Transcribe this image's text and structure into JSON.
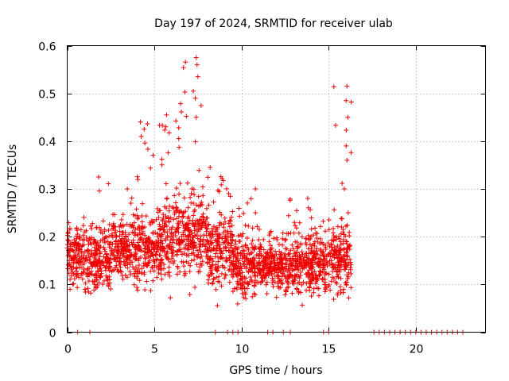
{
  "chart_data": {
    "type": "scatter",
    "title": "Day 197 of 2024, SRMTID for receiver ulab",
    "xlabel": "GPS time / hours",
    "ylabel": "SRMTID / TECUs",
    "xlim": [
      0,
      24
    ],
    "ylim": [
      0,
      0.6
    ],
    "xticks": [
      0,
      5,
      10,
      15,
      20
    ],
    "yticks": [
      0,
      0.1,
      0.2,
      0.3,
      0.4,
      0.5,
      0.6
    ],
    "xtick_labels": [
      "0",
      "5",
      "10",
      "15",
      "20"
    ],
    "ytick_labels": [
      "0",
      "0.1",
      "0.2",
      "0.3",
      "0.4",
      "0.5",
      "0.6"
    ],
    "grid": true,
    "marker": "+",
    "color": "#ee0000",
    "series": [
      {
        "name": "SRMTID",
        "segments": [
          {
            "x_start": 0.0,
            "x_end": 1.0,
            "baseline": 0.16,
            "spread": 0.05,
            "max": 0.25
          },
          {
            "x_start": 1.0,
            "x_end": 2.5,
            "baseline": 0.15,
            "spread": 0.05,
            "max": 0.32
          },
          {
            "x_start": 2.5,
            "x_end": 4.0,
            "baseline": 0.17,
            "spread": 0.05,
            "max": 0.3
          },
          {
            "x_start": 4.0,
            "x_end": 5.0,
            "baseline": 0.18,
            "spread": 0.06,
            "max": 0.44
          },
          {
            "x_start": 5.0,
            "x_end": 6.5,
            "baseline": 0.2,
            "spread": 0.07,
            "max": 0.45
          },
          {
            "x_start": 6.5,
            "x_end": 8.0,
            "baseline": 0.2,
            "spread": 0.07,
            "max": 0.57
          },
          {
            "x_start": 8.0,
            "x_end": 9.5,
            "baseline": 0.17,
            "spread": 0.06,
            "max": 0.34
          },
          {
            "x_start": 9.5,
            "x_end": 11.0,
            "baseline": 0.14,
            "spread": 0.05,
            "max": 0.3
          },
          {
            "x_start": 11.0,
            "x_end": 12.5,
            "baseline": 0.14,
            "spread": 0.04,
            "max": 0.22
          },
          {
            "x_start": 12.5,
            "x_end": 14.0,
            "baseline": 0.14,
            "spread": 0.05,
            "max": 0.28
          },
          {
            "x_start": 14.0,
            "x_end": 15.0,
            "baseline": 0.14,
            "spread": 0.05,
            "max": 0.25
          },
          {
            "x_start": 15.0,
            "x_end": 16.3,
            "baseline": 0.16,
            "spread": 0.06,
            "max": 0.52
          }
        ],
        "spikes": [
          {
            "x": 4.2,
            "y": 0.44
          },
          {
            "x": 4.25,
            "y": 0.41
          },
          {
            "x": 5.7,
            "y": 0.455
          },
          {
            "x": 5.65,
            "y": 0.43
          },
          {
            "x": 7.4,
            "y": 0.575
          },
          {
            "x": 7.45,
            "y": 0.56
          },
          {
            "x": 7.5,
            "y": 0.535
          },
          {
            "x": 7.35,
            "y": 0.49
          },
          {
            "x": 7.4,
            "y": 0.45
          },
          {
            "x": 16.05,
            "y": 0.515
          },
          {
            "x": 16.0,
            "y": 0.485
          },
          {
            "x": 16.1,
            "y": 0.45
          },
          {
            "x": 16.0,
            "y": 0.39
          },
          {
            "x": 16.05,
            "y": 0.36
          },
          {
            "x": 10.8,
            "y": 0.3
          },
          {
            "x": 1.8,
            "y": 0.325
          },
          {
            "x": 3.45,
            "y": 0.3
          },
          {
            "x": 8.2,
            "y": 0.345
          },
          {
            "x": 13.8,
            "y": 0.28
          },
          {
            "x": 15.9,
            "y": 0.3
          }
        ],
        "zero_values_x": [
          0.6,
          1.3,
          8.5,
          9.2,
          9.5,
          9.8,
          11.5,
          11.8,
          12.4,
          12.8,
          14.7,
          15.0,
          17.6,
          17.9,
          18.2,
          18.5,
          18.8,
          19.1,
          19.4,
          19.7,
          20.0,
          20.3,
          20.6,
          20.9,
          21.2,
          21.5,
          21.8,
          22.1,
          22.4,
          22.7
        ]
      }
    ]
  }
}
